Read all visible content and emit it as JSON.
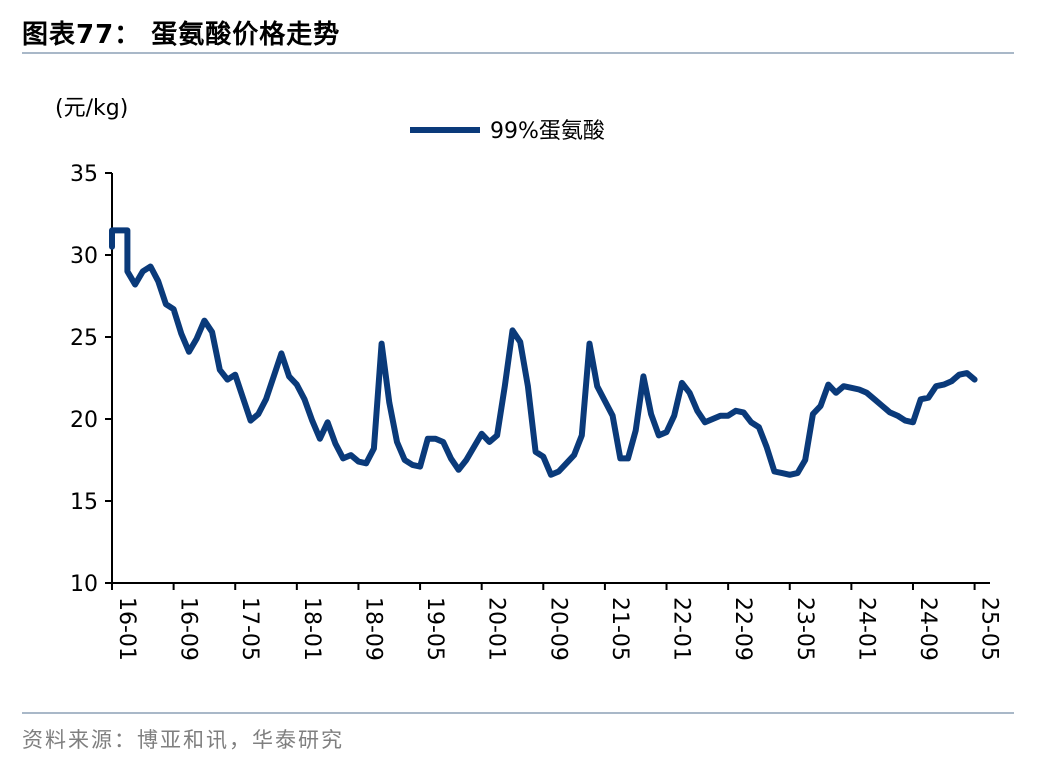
{
  "header": {
    "title": "图表77：  蛋氨酸价格走势",
    "source": "资料来源：博亚和讯，华泰研究"
  },
  "chart_data": {
    "type": "line",
    "unit_label": "(元/kg)",
    "ylim": [
      10,
      35
    ],
    "yticks": [
      "35",
      "30",
      "25",
      "20",
      "15",
      "10"
    ],
    "xticks": [
      "16-01",
      "16-09",
      "17-05",
      "18-01",
      "18-09",
      "19-05",
      "20-01",
      "20-09",
      "21-05",
      "22-01",
      "22-09",
      "23-05",
      "24-01",
      "24-09",
      "25-05"
    ],
    "xlim": [
      "2016-01",
      "2025-07"
    ],
    "grid": false,
    "legend_position": "top-center",
    "color": "#0a3a7a",
    "series": [
      {
        "name": "99%蛋氨酸",
        "points": [
          [
            "2016-01",
            30.5
          ],
          [
            "2016-01",
            31.5
          ],
          [
            "2016-03",
            31.5
          ],
          [
            "2016-03",
            29
          ],
          [
            "2016-04",
            28.2
          ],
          [
            "2016-05",
            29
          ],
          [
            "2016-06",
            29.3
          ],
          [
            "2016-07",
            28.4
          ],
          [
            "2016-08",
            27
          ],
          [
            "2016-09",
            26.7
          ],
          [
            "2016-10",
            25.2
          ],
          [
            "2016-11",
            24.1
          ],
          [
            "2016-12",
            24.9
          ],
          [
            "2017-01",
            26
          ],
          [
            "2017-02",
            25.3
          ],
          [
            "2017-03",
            23
          ],
          [
            "2017-04",
            22.4
          ],
          [
            "2017-05",
            22.7
          ],
          [
            "2017-06",
            21.3
          ],
          [
            "2017-07",
            19.9
          ],
          [
            "2017-08",
            20.3
          ],
          [
            "2017-09",
            21.2
          ],
          [
            "2017-10",
            22.6
          ],
          [
            "2017-11",
            24
          ],
          [
            "2017-12",
            22.6
          ],
          [
            "2018-01",
            22.1
          ],
          [
            "2018-02",
            21.2
          ],
          [
            "2018-03",
            19.9
          ],
          [
            "2018-04",
            18.8
          ],
          [
            "2018-05",
            19.8
          ],
          [
            "2018-06",
            18.5
          ],
          [
            "2018-07",
            17.6
          ],
          [
            "2018-08",
            17.8
          ],
          [
            "2018-09",
            17.4
          ],
          [
            "2018-10",
            17.3
          ],
          [
            "2018-11",
            18.2
          ],
          [
            "2018-12",
            24.6
          ],
          [
            "2019-01",
            21
          ],
          [
            "2019-02",
            18.6
          ],
          [
            "2019-03",
            17.5
          ],
          [
            "2019-04",
            17.2
          ],
          [
            "2019-05",
            17.1
          ],
          [
            "2019-06",
            18.8
          ],
          [
            "2019-07",
            18.8
          ],
          [
            "2019-08",
            18.6
          ],
          [
            "2019-09",
            17.6
          ],
          [
            "2019-10",
            16.9
          ],
          [
            "2019-11",
            17.5
          ],
          [
            "2019-12",
            18.3
          ],
          [
            "2020-01",
            19.1
          ],
          [
            "2020-02",
            18.6
          ],
          [
            "2020-03",
            19
          ],
          [
            "2020-04",
            22
          ],
          [
            "2020-05",
            25.4
          ],
          [
            "2020-06",
            24.7
          ],
          [
            "2020-07",
            22
          ],
          [
            "2020-08",
            18
          ],
          [
            "2020-09",
            17.7
          ],
          [
            "2020-10",
            16.6
          ],
          [
            "2020-11",
            16.8
          ],
          [
            "2020-12",
            17.3
          ],
          [
            "2021-01",
            17.8
          ],
          [
            "2021-02",
            19
          ],
          [
            "2021-03",
            24.6
          ],
          [
            "2021-04",
            22
          ],
          [
            "2021-05",
            21.1
          ],
          [
            "2021-06",
            20.2
          ],
          [
            "2021-07",
            17.6
          ],
          [
            "2021-08",
            17.6
          ],
          [
            "2021-09",
            19.3
          ],
          [
            "2021-10",
            22.6
          ],
          [
            "2021-11",
            20.3
          ],
          [
            "2021-12",
            19
          ],
          [
            "2022-01",
            19.2
          ],
          [
            "2022-02",
            20.2
          ],
          [
            "2022-03",
            22.2
          ],
          [
            "2022-04",
            21.6
          ],
          [
            "2022-05",
            20.5
          ],
          [
            "2022-06",
            19.8
          ],
          [
            "2022-07",
            20
          ],
          [
            "2022-08",
            20.2
          ],
          [
            "2022-09",
            20.2
          ],
          [
            "2022-10",
            20.5
          ],
          [
            "2022-11",
            20.4
          ],
          [
            "2022-12",
            19.8
          ],
          [
            "2023-01",
            19.5
          ],
          [
            "2023-02",
            18.3
          ],
          [
            "2023-03",
            16.8
          ],
          [
            "2023-04",
            16.7
          ],
          [
            "2023-05",
            16.6
          ],
          [
            "2023-06",
            16.7
          ],
          [
            "2023-07",
            17.5
          ],
          [
            "2023-08",
            20.3
          ],
          [
            "2023-09",
            20.8
          ],
          [
            "2023-10",
            22.1
          ],
          [
            "2023-11",
            21.6
          ],
          [
            "2023-12",
            22
          ],
          [
            "2024-01",
            21.9
          ],
          [
            "2024-02",
            21.8
          ],
          [
            "2024-03",
            21.6
          ],
          [
            "2024-04",
            21.2
          ],
          [
            "2024-05",
            20.8
          ],
          [
            "2024-06",
            20.4
          ],
          [
            "2024-07",
            20.2
          ],
          [
            "2024-08",
            19.9
          ],
          [
            "2024-09",
            19.8
          ],
          [
            "2024-10",
            21.2
          ],
          [
            "2024-11",
            21.3
          ],
          [
            "2024-12",
            22
          ],
          [
            "2025-01",
            22.1
          ],
          [
            "2025-02",
            22.3
          ],
          [
            "2025-03",
            22.7
          ],
          [
            "2025-04",
            22.8
          ],
          [
            "2025-05",
            22.4
          ]
        ]
      }
    ]
  }
}
